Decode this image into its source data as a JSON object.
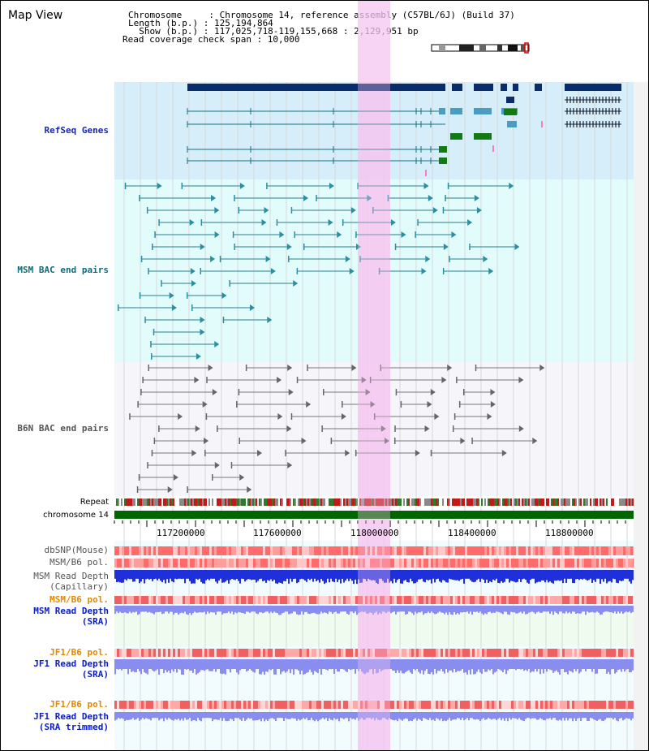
{
  "view_title": "Map View",
  "info": {
    "chromosome_line": "Chromosome     : Chromosome 14, reference assembly (C57BL/6J) (Build 37)",
    "length_line": "Length (b.p.) : 125,194,864",
    "show_line": "  Show (b.p.) : 117,025,718-119,155,668 : 2,129,951 bp",
    "coverage_line": "Read coverage check span : 10,000"
  },
  "tracks": {
    "refseq": "RefSeq Genes",
    "msm_bac": "MSM BAC end pairs",
    "b6n_bac": "B6N BAC end pairs",
    "repeat": "Repeat",
    "chromosome": "chromosome 14",
    "dbsnp": "dbSNP(Mouse)",
    "msm_b6_pol": "MSM/B6 pol.",
    "msm_depth_cap": "MSM Read Depth\n(Capillary)",
    "msm_b6_pol2": "MSM/B6 pol.",
    "msm_depth_sra": "MSM Read Depth\n(SRA)",
    "jf1_b6_pol": "JF1/B6 pol.",
    "jf1_depth_sra": "JF1 Read Depth\n(SRA)",
    "jf1_b6_pol2": "JF1/B6 pol.",
    "jf1_depth_trim": "JF1 Read Depth\n(SRA trimmed)"
  },
  "axis": {
    "ticks": [
      "117200000",
      "117600000",
      "118000000",
      "118400000",
      "118800000"
    ]
  },
  "colors": {
    "refseq_bg": "#d6eef9",
    "msm_bg": "#e2fbfb",
    "b6n_bg": "#f6f6fa",
    "highlight": "#f6c6f0",
    "chromosome": "#006600",
    "navy": "#0b2c6b",
    "teal": "#11707f"
  }
}
